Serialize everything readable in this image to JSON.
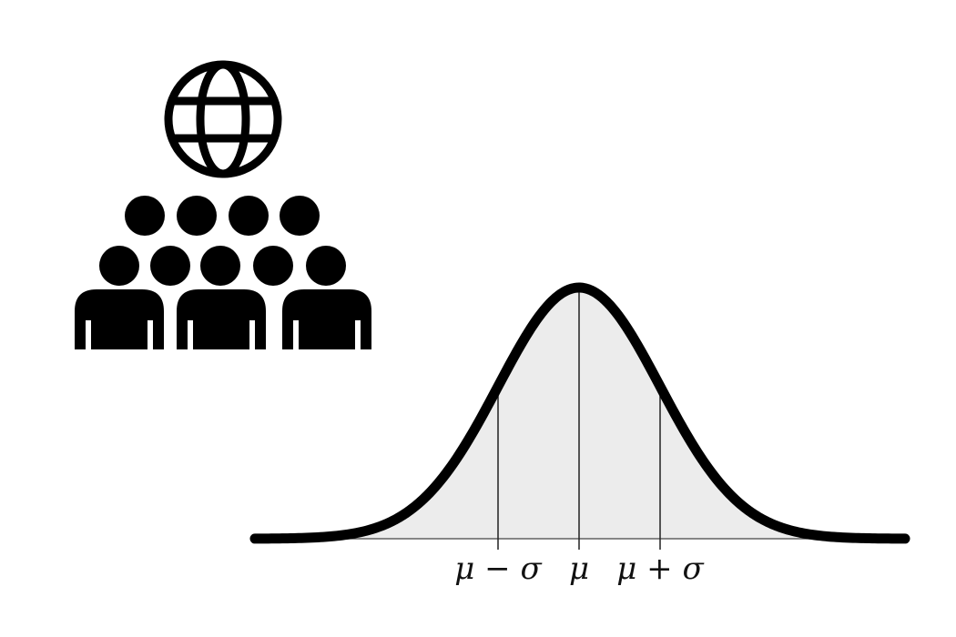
{
  "icons": {
    "globe": "globe-icon",
    "population": "population-group-icon"
  },
  "distribution": {
    "labels": {
      "minus_sigma": "μ − σ",
      "mean": "μ",
      "plus_sigma": "μ + σ"
    }
  },
  "colors": {
    "stroke": "#000000",
    "fill": "#ececec",
    "guide": "#222222"
  }
}
